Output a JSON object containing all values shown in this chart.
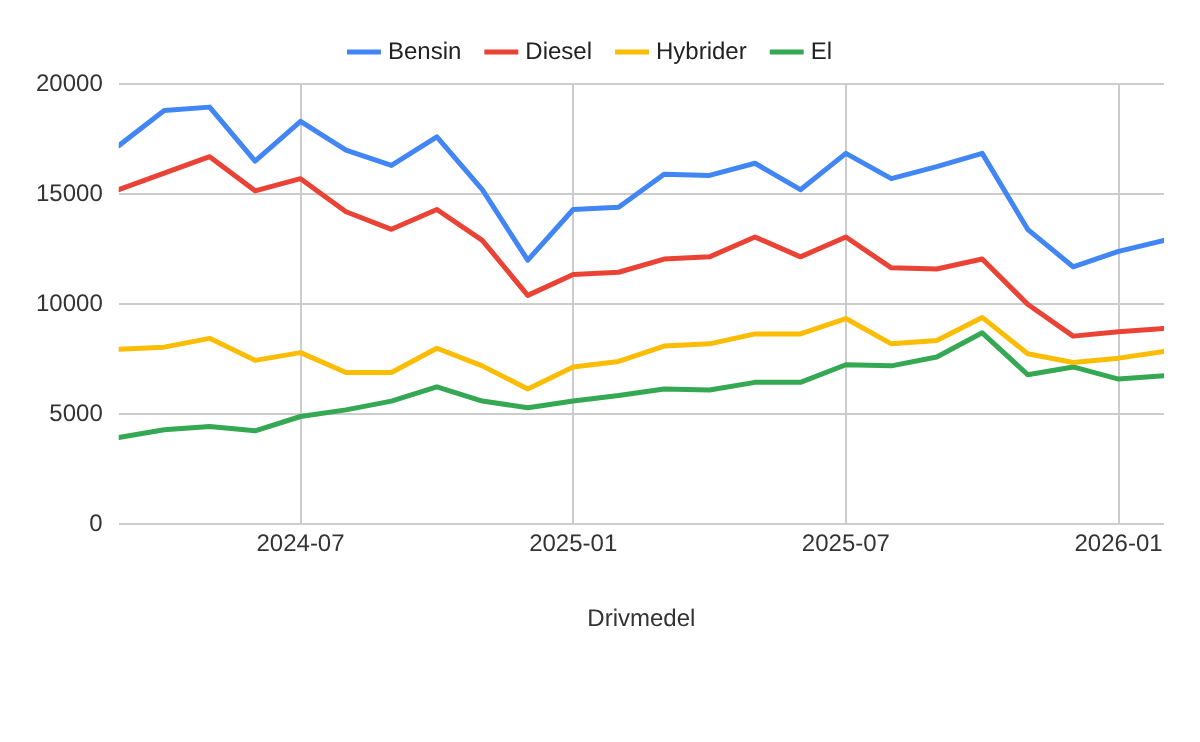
{
  "chart_data": {
    "type": "line",
    "xlabel": "Drivmedel",
    "x": [
      "2024-03",
      "2024-04",
      "2024-05",
      "2024-06",
      "2024-07",
      "2024-08",
      "2024-09",
      "2024-10",
      "2024-11",
      "2024-12",
      "2025-01",
      "2025-02",
      "2025-03",
      "2025-04",
      "2025-05",
      "2025-06",
      "2025-07",
      "2025-08",
      "2025-09",
      "2025-10",
      "2025-11",
      "2025-12",
      "2026-01",
      "2026-02"
    ],
    "series": [
      {
        "name": "Bensin",
        "color": "#4285f4",
        "values": [
          17200,
          18800,
          18950,
          16500,
          18300,
          17000,
          16300,
          17600,
          15200,
          12000,
          14300,
          14400,
          15900,
          15850,
          16400,
          15200,
          16850,
          15700,
          16250,
          16850,
          13400,
          11700,
          12400,
          12900
        ]
      },
      {
        "name": "Diesel",
        "color": "#ea4335",
        "values": [
          15200,
          15950,
          16700,
          15150,
          15700,
          14200,
          13400,
          14300,
          12900,
          10400,
          11350,
          11450,
          12050,
          12150,
          13050,
          12150,
          13050,
          11650,
          11600,
          12050,
          10000,
          8550,
          8750,
          8900
        ]
      },
      {
        "name": "Hybrider",
        "color": "#fbbc04",
        "values": [
          7950,
          8050,
          8450,
          7450,
          7800,
          6900,
          6900,
          8000,
          7200,
          6150,
          7150,
          7400,
          8100,
          8200,
          8650,
          8650,
          9350,
          8200,
          8350,
          9400,
          7750,
          7350,
          7550,
          7850
        ]
      },
      {
        "name": "El",
        "color": "#34a853",
        "values": [
          3950,
          4300,
          4450,
          4250,
          4900,
          5200,
          5600,
          6250,
          5600,
          5300,
          5600,
          5850,
          6150,
          6100,
          6450,
          6450,
          7250,
          7200,
          7600,
          8700,
          6800,
          7150,
          6600,
          6750
        ]
      }
    ],
    "xlim": [
      "2024-03",
      "2026-02"
    ],
    "xticks": [
      "2024-07",
      "2025-01",
      "2025-07",
      "2026-01"
    ],
    "ylim": [
      0,
      20000
    ],
    "yticks": [
      0,
      5000,
      10000,
      15000,
      20000
    ],
    "grid": true,
    "legend": "top",
    "marker": "none",
    "line_style": "solid"
  }
}
